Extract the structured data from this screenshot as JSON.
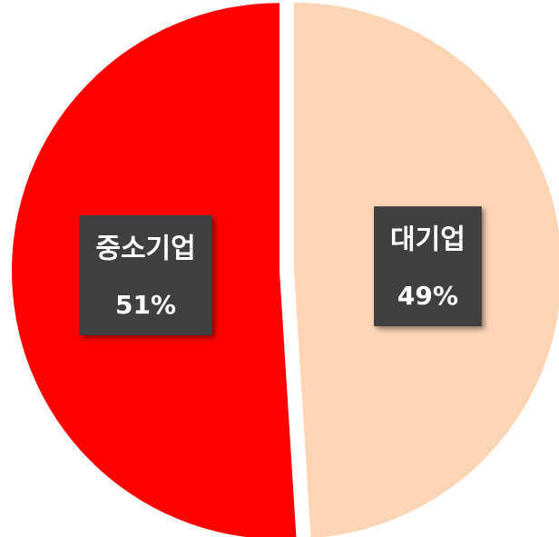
{
  "chart_data": {
    "type": "pie",
    "categories": [
      "대기업",
      "중소기업"
    ],
    "values": [
      49,
      51
    ],
    "value_labels": [
      "49%",
      "51%"
    ],
    "colors": [
      "#fcd5b5",
      "#ff0000"
    ]
  }
}
